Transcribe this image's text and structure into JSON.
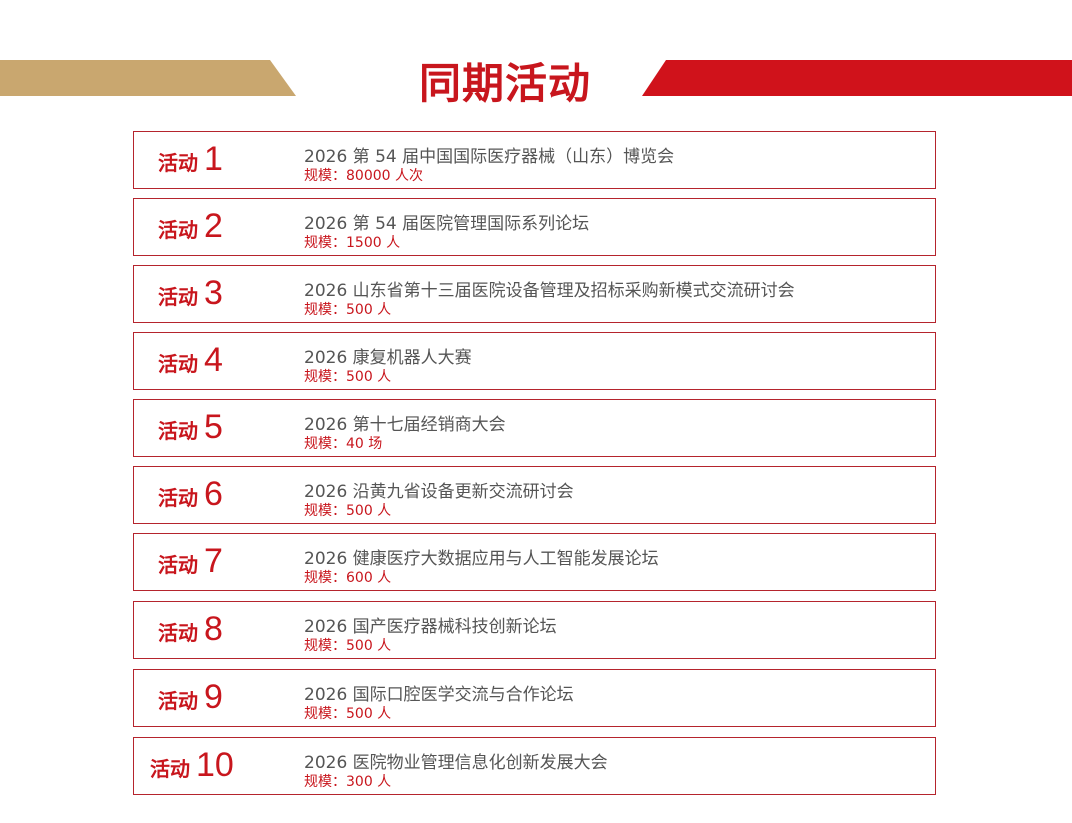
{
  "header": {
    "title": "同期活动",
    "colors": {
      "gold": "#c9a76f",
      "red": "#d0121b"
    }
  },
  "activity_word": "活动",
  "activities": [
    {
      "num": "1",
      "name": "2026 第 54 届中国国际医疗器械（山东）博览会",
      "scale": "规模：80000 人次"
    },
    {
      "num": "2",
      "name": "2026 第 54 届医院管理国际系列论坛",
      "scale": "规模：1500 人"
    },
    {
      "num": "3",
      "name": "2026 山东省第十三届医院设备管理及招标采购新模式交流研讨会",
      "scale": "规模：500 人"
    },
    {
      "num": "4",
      "name": "2026 康复机器人大赛",
      "scale": "规模：500 人"
    },
    {
      "num": "5",
      "name": "2026 第十七届经销商大会",
      "scale": "规模：40 场"
    },
    {
      "num": "6",
      "name": "2026 沿黄九省设备更新交流研讨会",
      "scale": "规模：500 人"
    },
    {
      "num": "7",
      "name": "2026 健康医疗大数据应用与人工智能发展论坛",
      "scale": "规模：600 人"
    },
    {
      "num": "8",
      "name": "2026 国产医疗器械科技创新论坛",
      "scale": "规模：500 人"
    },
    {
      "num": "9",
      "name": "2026 国际口腔医学交流与合作论坛",
      "scale": "规模：500 人"
    },
    {
      "num": "10",
      "name": "2026 医院物业管理信息化创新发展大会",
      "scale": "规模：300 人"
    }
  ]
}
